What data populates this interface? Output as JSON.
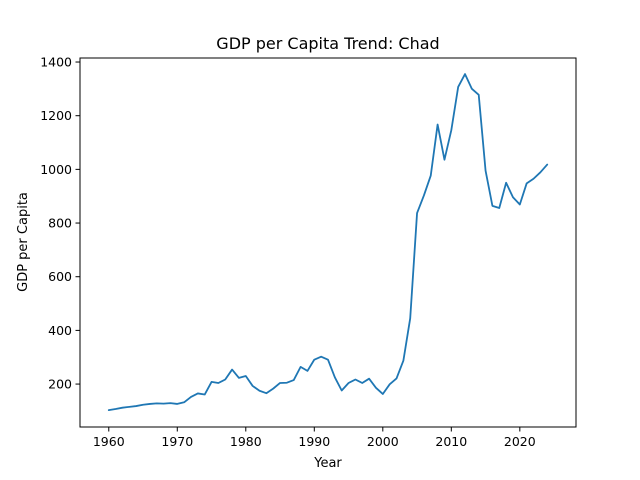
{
  "chart_data": {
    "type": "line",
    "title": "GDP per Capita Trend: Chad",
    "xlabel": "Year",
    "ylabel": "GDP per Capita",
    "xlim": [
      1955.8,
      2028.2
    ],
    "ylim": [
      40,
      1415
    ],
    "xticks": [
      1960,
      1970,
      1980,
      1990,
      2000,
      2010,
      2020
    ],
    "yticks": [
      200,
      400,
      600,
      800,
      1000,
      1200,
      1400
    ],
    "grid": false,
    "legend": "none",
    "line_color": "#1f77b4",
    "series": [
      {
        "x": [
          1960,
          1961,
          1962,
          1963,
          1964,
          1965,
          1966,
          1967,
          1968,
          1969,
          1970,
          1971,
          1972,
          1973,
          1974,
          1975,
          1976,
          1977,
          1978,
          1979,
          1980,
          1981,
          1982,
          1983,
          1984,
          1985,
          1986,
          1987,
          1988,
          1989,
          1990,
          1991,
          1992,
          1993,
          1994,
          1995,
          1996,
          1997,
          1998,
          1999,
          2000,
          2001,
          2002,
          2003,
          2004,
          2005,
          2006,
          2007,
          2008,
          2009,
          2010,
          2011,
          2012,
          2013,
          2014,
          2015,
          2016,
          2017,
          2018,
          2019,
          2020,
          2021,
          2022,
          2023,
          2024
        ],
        "values": [
          103,
          107,
          112,
          115,
          118,
          123,
          126,
          128,
          127,
          129,
          126,
          132,
          152,
          165,
          161,
          208,
          204,
          217,
          254,
          223,
          230,
          193,
          175,
          166,
          183,
          204,
          205,
          215,
          264,
          249,
          291,
          302,
          291,
          225,
          176,
          204,
          217,
          204,
          220,
          186,
          163,
          199,
          221,
          287,
          445,
          837,
          903,
          977,
          1167,
          1036,
          1146,
          1307,
          1355,
          1300,
          1278,
          995,
          864,
          856,
          950,
          896,
          869,
          948,
          965,
          989,
          1018
        ]
      }
    ]
  }
}
